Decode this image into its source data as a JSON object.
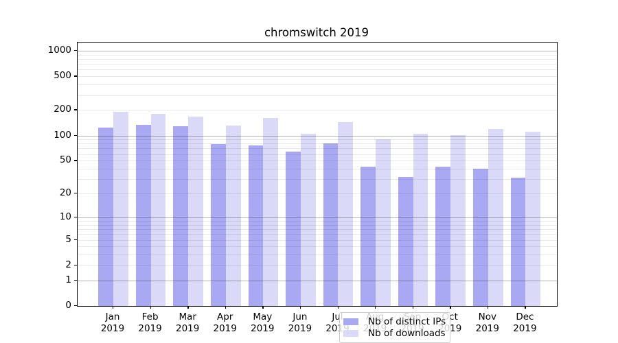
{
  "title": "chromswitch 2019",
  "chart_data": {
    "type": "bar",
    "title": "chromswitch 2019",
    "categories": [
      "Jan 2019",
      "Feb 2019",
      "Mar 2019",
      "Apr 2019",
      "May 2019",
      "Jun 2019",
      "Jul 2019",
      "Aug 2019",
      "Sep 2019",
      "Oct 2019",
      "Nov 2019",
      "Dec 2019"
    ],
    "series": [
      {
        "name": "Nb of distinct IPs",
        "color": "#a9a9f3",
        "values": [
          125,
          134,
          130,
          79,
          76,
          64,
          81,
          42,
          32,
          42,
          40,
          31
        ]
      },
      {
        "name": "Nb of downloads",
        "color": "#dadaf8",
        "values": [
          190,
          181,
          168,
          132,
          162,
          104,
          143,
          91,
          105,
          101,
          120,
          111
        ]
      }
    ],
    "yscale": "log1p",
    "ylim": [
      0,
      1225
    ],
    "y_tick_values": [
      1000,
      500,
      200,
      100,
      50,
      20,
      10,
      5,
      2,
      1,
      0
    ],
    "y_tick_labels": [
      "1000",
      "500",
      "200",
      "100",
      "50",
      "20",
      "10",
      "5",
      "2",
      "1",
      "0"
    ],
    "grid": true,
    "legend_position": "lower center",
    "legend_labels": [
      "Nb of distinct IPs",
      "Nb of downloads"
    ]
  }
}
